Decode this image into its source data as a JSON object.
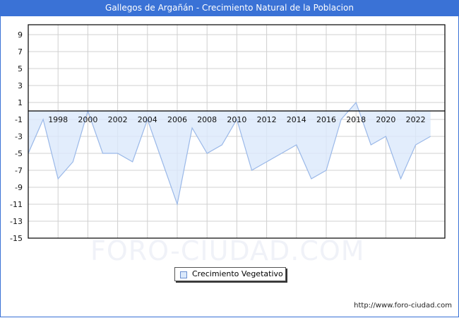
{
  "title": "Gallegos de Argañán - Crecimiento Natural de la Poblacion",
  "watermark": "FORO-CIUDAD.COM",
  "footer": "http://www.foro-ciudad.com",
  "legend": {
    "label": "Crecimiento Vegetativo"
  },
  "colors": {
    "title_bar": "#3a72d6",
    "fill": "#dbe9fb",
    "line": "#9ab8e8",
    "grid": "#d0d0d0"
  },
  "chart_data": {
    "type": "area",
    "title": "Gallegos de Argañán - Crecimiento Natural de la Poblacion",
    "xlabel": "",
    "ylabel": "",
    "ylim": [
      -15,
      10
    ],
    "yticks": [
      9,
      7,
      5,
      3,
      1,
      -1,
      -3,
      -5,
      -7,
      -9,
      -11,
      -13,
      -15
    ],
    "xticks": [
      "1998",
      "2000",
      "2002",
      "2004",
      "2006",
      "2008",
      "2010",
      "2012",
      "2014",
      "2016",
      "2018",
      "2020",
      "2022"
    ],
    "grid": true,
    "legend_position": "bottom-center",
    "x": [
      1996,
      1997,
      1998,
      1999,
      2000,
      2001,
      2002,
      2003,
      2004,
      2005,
      2006,
      2007,
      2008,
      2009,
      2010,
      2011,
      2012,
      2013,
      2014,
      2015,
      2016,
      2017,
      2018,
      2019,
      2020,
      2021,
      2022,
      2023
    ],
    "series": [
      {
        "name": "Crecimiento Vegetativo",
        "values": [
          -5,
          -1,
          -8,
          -6,
          0,
          -5,
          -5,
          -6,
          -1,
          -6,
          -11,
          -2,
          -5,
          -4,
          -1,
          -7,
          -6,
          -5,
          -4,
          -8,
          -7,
          -1,
          1,
          -4,
          -3,
          -8,
          -4,
          -3
        ]
      }
    ]
  }
}
